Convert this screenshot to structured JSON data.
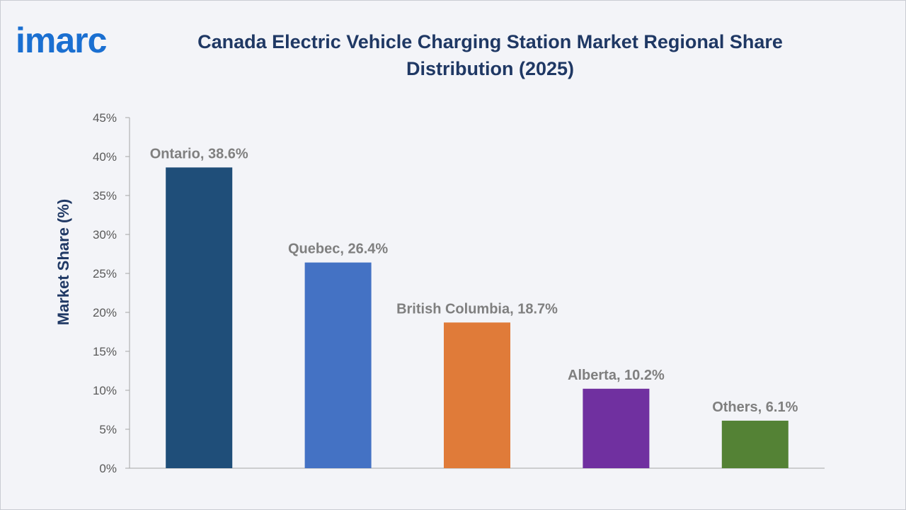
{
  "brand": {
    "logo_text": "imarc",
    "logo_color": "#1a6fd1"
  },
  "chart_data": {
    "type": "bar",
    "title": "Canada Electric Vehicle Charging Station Market Regional Share Distribution (2025)",
    "xlabel": "",
    "ylabel": "Market Share (%)",
    "ylim": [
      0,
      45
    ],
    "yticks": [
      0,
      5,
      10,
      15,
      20,
      25,
      30,
      35,
      40,
      45
    ],
    "ytick_labels": [
      "0%",
      "5%",
      "10%",
      "15%",
      "20%",
      "25%",
      "30%",
      "35%",
      "40%",
      "45%"
    ],
    "grid": false,
    "legend": "none",
    "categories": [
      "Ontario",
      "Quebec",
      "British Columbia",
      "Alberta",
      "Others"
    ],
    "values": [
      38.6,
      26.4,
      18.7,
      10.2,
      6.1
    ],
    "data_labels": [
      "Ontario, 38.6%",
      "Quebec, 26.4%",
      "British Columbia, 18.7%",
      "Alberta, 10.2%",
      "Others, 6.1%"
    ],
    "colors": [
      "#1f4e79",
      "#4472c4",
      "#e07b39",
      "#7030a0",
      "#548235"
    ]
  }
}
